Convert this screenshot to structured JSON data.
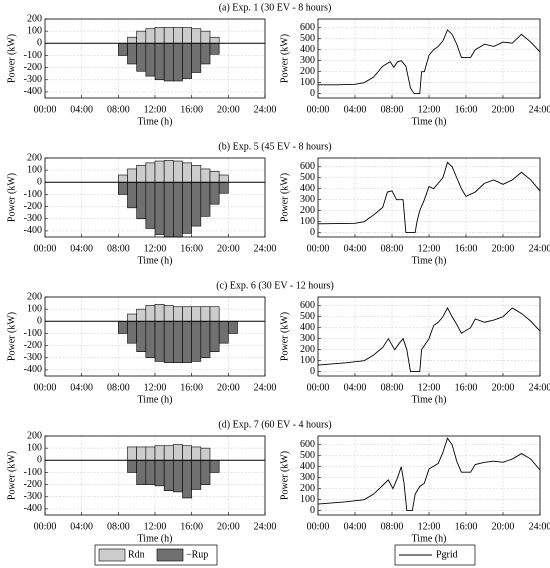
{
  "chart_data": [
    {
      "type": "bar",
      "title": "(a) Exp. 1 (30 EV - 8 hours)",
      "xlabel": "Time (h)",
      "ylabel": "Power (kW)",
      "xlim": [
        0,
        24
      ],
      "xticks": [
        {
          "value": 0,
          "label": "00:00"
        },
        {
          "value": 4,
          "label": "04:00"
        },
        {
          "value": 8,
          "label": "08:00"
        },
        {
          "value": 12,
          "label": "12:00"
        },
        {
          "value": 16,
          "label": "16:00"
        },
        {
          "value": 20,
          "label": "20:00"
        },
        {
          "value": 24,
          "label": "24:00"
        }
      ],
      "ylim": [
        -450,
        200
      ],
      "yticks": [
        200,
        100,
        0,
        -100,
        -200,
        -300,
        -400
      ],
      "grid": true,
      "x": [
        8.5,
        9.5,
        10.5,
        11.5,
        12.5,
        13.5,
        14.5,
        15.5,
        16.5,
        17.5,
        18.5
      ],
      "series": [
        {
          "color": "#cccccc",
          "values": [
            0,
            50,
            100,
            120,
            130,
            130,
            130,
            130,
            120,
            100,
            50
          ]
        },
        {
          "color": "#707070",
          "values": [
            -100,
            -170,
            -230,
            -270,
            -300,
            -310,
            -310,
            -290,
            -240,
            -170,
            -90
          ]
        }
      ]
    },
    {
      "type": "line",
      "xlim": [
        0,
        24
      ],
      "xticks": [
        {
          "value": 0,
          "label": "00:00"
        },
        {
          "value": 4,
          "label": "04:00"
        },
        {
          "value": 8,
          "label": "08:00"
        },
        {
          "value": 12,
          "label": "12:00"
        },
        {
          "value": 16,
          "label": "16:00"
        },
        {
          "value": 20,
          "label": "20:00"
        },
        {
          "value": 24,
          "label": "24:00"
        }
      ],
      "xlabel": "Time (h)",
      "ylabel": "Power (kW)",
      "ylim": [
        -40,
        680
      ],
      "yticks": [
        600,
        500,
        400,
        300,
        200,
        100,
        0
      ],
      "grid": true,
      "x": [
        0,
        2,
        4,
        5,
        6,
        7,
        7.8,
        8.2,
        8.6,
        9,
        9.5,
        10,
        10.4,
        11,
        11.2,
        11.5,
        12,
        12.5,
        13,
        13.5,
        14,
        14.5,
        15,
        15.5,
        16.5,
        17,
        18,
        19,
        20,
        21,
        22,
        23,
        24
      ],
      "series": [
        {
          "color": "#000000",
          "values": [
            80,
            80,
            85,
            100,
            150,
            250,
            290,
            240,
            290,
            300,
            250,
            50,
            0,
            0,
            200,
            200,
            350,
            400,
            430,
            480,
            580,
            540,
            450,
            330,
            330,
            400,
            450,
            430,
            470,
            460,
            540,
            470,
            380
          ]
        }
      ]
    },
    {
      "type": "bar",
      "title": "(b) Exp. 5 (45 EV - 8 hours)",
      "xlabel": "Time (h)",
      "ylabel": "Power (kW)",
      "xlim": [
        0,
        24
      ],
      "xticks": [
        {
          "value": 0,
          "label": "00:00"
        },
        {
          "value": 4,
          "label": "04:00"
        },
        {
          "value": 8,
          "label": "08:00"
        },
        {
          "value": 12,
          "label": "12:00"
        },
        {
          "value": 16,
          "label": "16:00"
        },
        {
          "value": 20,
          "label": "20:00"
        },
        {
          "value": 24,
          "label": "24:00"
        }
      ],
      "ylim": [
        -450,
        200
      ],
      "yticks": [
        200,
        100,
        0,
        -100,
        -200,
        -300,
        -400
      ],
      "grid": true,
      "x": [
        8.5,
        9.5,
        10.5,
        11.5,
        12.5,
        13.5,
        14.5,
        15.5,
        16.5,
        17.5,
        18.5,
        19.5
      ],
      "series": [
        {
          "color": "#cccccc",
          "values": [
            60,
            110,
            140,
            160,
            175,
            180,
            175,
            160,
            140,
            110,
            90,
            60
          ]
        },
        {
          "color": "#707070",
          "values": [
            -100,
            -210,
            -300,
            -380,
            -430,
            -450,
            -450,
            -420,
            -360,
            -280,
            -180,
            -90
          ]
        }
      ]
    },
    {
      "type": "line",
      "xlim": [
        0,
        24
      ],
      "xticks": [
        {
          "value": 0,
          "label": "00:00"
        },
        {
          "value": 4,
          "label": "04:00"
        },
        {
          "value": 8,
          "label": "08:00"
        },
        {
          "value": 12,
          "label": "12:00"
        },
        {
          "value": 16,
          "label": "16:00"
        },
        {
          "value": 20,
          "label": "20:00"
        },
        {
          "value": 24,
          "label": "24:00"
        }
      ],
      "xlabel": "Time (h)",
      "ylabel": "Power (kW)",
      "ylim": [
        -40,
        680
      ],
      "yticks": [
        600,
        500,
        400,
        300,
        200,
        100,
        0
      ],
      "grid": true,
      "x": [
        0,
        4,
        5,
        6,
        7,
        7.5,
        8,
        8.5,
        9.2,
        9.5,
        10.5,
        10.7,
        11,
        11.5,
        12,
        12.5,
        13,
        13.5,
        14,
        14.5,
        15,
        15.5,
        16,
        17,
        18,
        19,
        20,
        21,
        22,
        23,
        24
      ],
      "series": [
        {
          "color": "#000000",
          "values": [
            80,
            85,
            100,
            160,
            230,
            370,
            380,
            300,
            300,
            0,
            0,
            100,
            200,
            300,
            420,
            400,
            450,
            500,
            640,
            600,
            500,
            400,
            330,
            370,
            450,
            480,
            440,
            480,
            550,
            480,
            380
          ]
        }
      ]
    },
    {
      "type": "bar",
      "title": "(c) Exp. 6 (30 EV - 12 hours)",
      "xlabel": "Time (h)",
      "ylabel": "Power (kW)",
      "xlim": [
        0,
        24
      ],
      "xticks": [
        {
          "value": 0,
          "label": "00:00"
        },
        {
          "value": 4,
          "label": "04:00"
        },
        {
          "value": 8,
          "label": "08:00"
        },
        {
          "value": 12,
          "label": "12:00"
        },
        {
          "value": 16,
          "label": "16:00"
        },
        {
          "value": 20,
          "label": "20:00"
        },
        {
          "value": 24,
          "label": "24:00"
        }
      ],
      "ylim": [
        -450,
        200
      ],
      "yticks": [
        200,
        100,
        0,
        -100,
        -200,
        -300,
        -400
      ],
      "grid": true,
      "x": [
        8.5,
        9.5,
        10.5,
        11.5,
        12.5,
        13.5,
        14.5,
        15.5,
        16.5,
        17.5,
        18.5,
        19.5,
        20.5
      ],
      "series": [
        {
          "color": "#cccccc",
          "values": [
            0,
            60,
            100,
            130,
            140,
            130,
            120,
            120,
            120,
            120,
            120,
            0,
            0
          ]
        },
        {
          "color": "#707070",
          "values": [
            -100,
            -180,
            -250,
            -300,
            -330,
            -340,
            -340,
            -340,
            -330,
            -300,
            -250,
            -180,
            -100
          ]
        }
      ]
    },
    {
      "type": "line",
      "xlim": [
        0,
        24
      ],
      "xticks": [
        {
          "value": 0,
          "label": "00:00"
        },
        {
          "value": 4,
          "label": "04:00"
        },
        {
          "value": 8,
          "label": "08:00"
        },
        {
          "value": 12,
          "label": "12:00"
        },
        {
          "value": 16,
          "label": "16:00"
        },
        {
          "value": 20,
          "label": "20:00"
        },
        {
          "value": 24,
          "label": "24:00"
        }
      ],
      "xlabel": "Time (h)",
      "ylabel": "Power (kW)",
      "ylim": [
        -40,
        680
      ],
      "yticks": [
        600,
        500,
        400,
        300,
        200,
        100,
        0
      ],
      "grid": true,
      "x": [
        0,
        3,
        5,
        6,
        7,
        7.6,
        8.3,
        8.8,
        9.2,
        9.6,
        10,
        11,
        11.2,
        12,
        12.5,
        13,
        13.5,
        14,
        14.5,
        15,
        15.5,
        16.5,
        17,
        18,
        19,
        20,
        21,
        22,
        23,
        24
      ],
      "series": [
        {
          "color": "#000000",
          "values": [
            60,
            80,
            100,
            150,
            220,
            300,
            200,
            260,
            300,
            200,
            0,
            0,
            200,
            300,
            420,
            450,
            500,
            580,
            500,
            430,
            350,
            400,
            480,
            450,
            470,
            500,
            580,
            530,
            460,
            370
          ]
        }
      ]
    },
    {
      "type": "bar",
      "title": "(d) Exp. 7 (60 EV - 4 hours)",
      "xlabel": "Time (h)",
      "ylabel": "Power (kW)",
      "xlim": [
        0,
        24
      ],
      "xticks": [
        {
          "value": 0,
          "label": "00:00"
        },
        {
          "value": 4,
          "label": "04:00"
        },
        {
          "value": 8,
          "label": "08:00"
        },
        {
          "value": 12,
          "label": "12:00"
        },
        {
          "value": 16,
          "label": "16:00"
        },
        {
          "value": 20,
          "label": "20:00"
        },
        {
          "value": 24,
          "label": "24:00"
        }
      ],
      "ylim": [
        -450,
        200
      ],
      "yticks": [
        200,
        100,
        0,
        -100,
        -200,
        -300,
        -400
      ],
      "grid": true,
      "x": [
        9.5,
        10.5,
        11.5,
        12.5,
        13.5,
        14.5,
        15.5,
        16.5,
        17.5,
        18.5
      ],
      "series": [
        {
          "name": "Rdn",
          "color": "#cccccc",
          "values": [
            110,
            110,
            110,
            120,
            120,
            130,
            120,
            110,
            100,
            0
          ]
        },
        {
          "name": "−Rup",
          "color": "#707070",
          "values": [
            -100,
            -200,
            -200,
            -210,
            -250,
            -260,
            -310,
            -240,
            -200,
            -100
          ]
        }
      ]
    },
    {
      "type": "line",
      "xlim": [
        0,
        24
      ],
      "xticks": [
        {
          "value": 0,
          "label": "00:00"
        },
        {
          "value": 4,
          "label": "04:00"
        },
        {
          "value": 8,
          "label": "08:00"
        },
        {
          "value": 12,
          "label": "12:00"
        },
        {
          "value": 16,
          "label": "16:00"
        },
        {
          "value": 20,
          "label": "20:00"
        },
        {
          "value": 24,
          "label": "24:00"
        }
      ],
      "xlabel": "Time (h)",
      "ylabel": "Power (kW)",
      "ylim": [
        -40,
        680
      ],
      "yticks": [
        600,
        500,
        400,
        300,
        200,
        100,
        0
      ],
      "grid": true,
      "x": [
        0,
        3,
        5,
        6,
        7,
        7.6,
        8.1,
        8.6,
        9,
        9.3,
        9.6,
        10.2,
        10.5,
        11,
        11.5,
        12,
        13,
        13.5,
        14,
        14.5,
        15,
        15.5,
        16.5,
        17,
        18,
        19,
        20,
        21,
        22,
        23,
        24
      ],
      "series": [
        {
          "name": "Pgrid",
          "color": "#000000",
          "values": [
            60,
            80,
            100,
            150,
            230,
            280,
            200,
            300,
            400,
            250,
            0,
            0,
            150,
            220,
            250,
            380,
            430,
            530,
            660,
            600,
            450,
            350,
            350,
            420,
            440,
            450,
            440,
            470,
            520,
            470,
            370
          ]
        }
      ]
    }
  ]
}
